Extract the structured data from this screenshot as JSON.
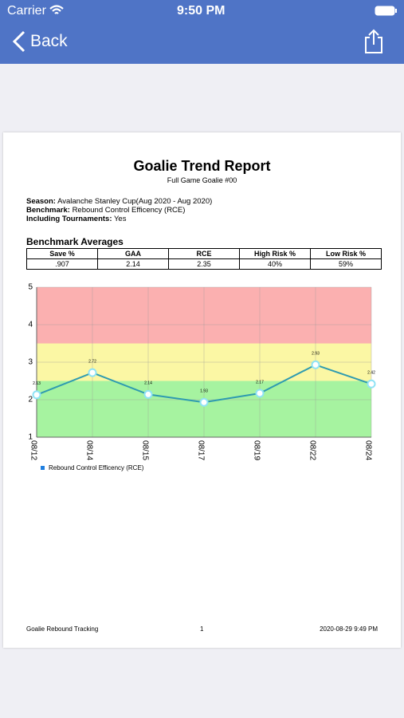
{
  "status_bar": {
    "carrier": "Carrier",
    "time": "9:50 PM"
  },
  "nav": {
    "back": "Back"
  },
  "report": {
    "title": "Goalie Trend Report",
    "subtitle": "Full Game Goalie #00",
    "info": [
      {
        "label": "Season:",
        "value": "Avalanche Stanley Cup(Aug 2020 - Aug 2020)"
      },
      {
        "label": "Benchmark:",
        "value": "Rebound Control Efficency (RCE)"
      },
      {
        "label": "Including Tournaments:",
        "value": "Yes"
      }
    ],
    "averages_title": "Benchmark Averages",
    "table": {
      "header": [
        "Save %",
        "GAA",
        "RCE",
        "High Risk %",
        "Low Risk %"
      ],
      "rows": [
        [
          ".907",
          "2.14",
          "2.35",
          "40%",
          "59%"
        ]
      ]
    },
    "footer": {
      "left": "Goalie Rebound Tracking",
      "page": "1",
      "right": "2020-08-29 9:49 PM"
    }
  },
  "chart_data": {
    "type": "line",
    "categories": [
      "08/12",
      "08/14",
      "08/15",
      "08/17",
      "08/19",
      "08/22",
      "08/24"
    ],
    "series": [
      {
        "name": "Rebound Control Efficency (RCE)",
        "color": "#2f9bb0",
        "values": [
          2.13,
          2.72,
          2.14,
          1.93,
          2.17,
          2.93,
          2.42
        ]
      }
    ],
    "ylim": [
      1,
      5
    ],
    "yticks": [
      1,
      2,
      3,
      4,
      5
    ],
    "grid": true,
    "bands": [
      {
        "from": 1,
        "to": 2.5,
        "color": "#a6f3a0"
      },
      {
        "from": 2.5,
        "to": 3.5,
        "color": "#fbf7a4"
      },
      {
        "from": 3.5,
        "to": 5,
        "color": "#fbb0b0"
      }
    ],
    "value_labels_shown": true,
    "legend": "bottom-left"
  }
}
